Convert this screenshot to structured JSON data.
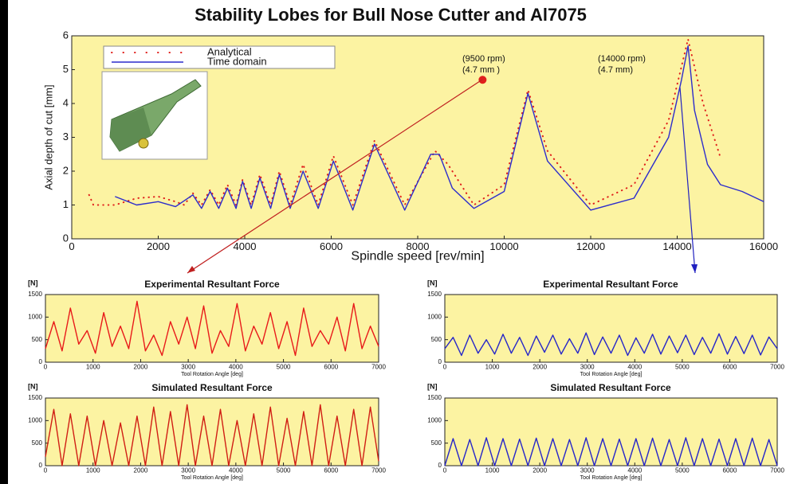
{
  "chart_data": [
    {
      "type": "line",
      "title": "Stability Lobes for Bull Nose Cutter and Al7075",
      "xlabel": "Spindle speed [rev/min]",
      "ylabel": "Axial depth of cut [mm]",
      "background": "#fcf3a2",
      "xlim": [
        0,
        16000
      ],
      "xticks": [
        0,
        2000,
        4000,
        6000,
        8000,
        10000,
        12000,
        14000,
        16000
      ],
      "ylim": [
        0,
        6
      ],
      "yticks": [
        0,
        1,
        2,
        3,
        4,
        5,
        6
      ],
      "annotations": [
        "(9500 rpm)",
        "(4.7 mm )",
        "(14000 rpm)",
        "(4.7 mm)"
      ],
      "highlight": {
        "x": 9500,
        "y": 4.7,
        "color": "#e0201c"
      },
      "series": [
        {
          "name": "Analytical",
          "color": "#e0201c",
          "style": "dotted",
          "x": [
            400,
            500,
            1000,
            1500,
            2000,
            2400,
            2600,
            2800,
            3000,
            3200,
            3400,
            3600,
            3800,
            3950,
            4150,
            4350,
            4600,
            4800,
            5050,
            5350,
            5700,
            6050,
            6500,
            7000,
            7700,
            8400,
            8700,
            9300,
            10000,
            10550,
            11000,
            12000,
            13000,
            13800,
            14250,
            14600,
            15000
          ],
          "values": [
            1.3,
            1.0,
            1.0,
            1.2,
            1.25,
            1.1,
            1.0,
            1.35,
            1.0,
            1.45,
            1.0,
            1.6,
            1.0,
            1.75,
            1.0,
            1.9,
            1.0,
            2.0,
            1.0,
            2.2,
            1.0,
            2.45,
            1.0,
            2.9,
            1.0,
            2.6,
            2.2,
            1.0,
            1.6,
            4.4,
            2.6,
            1.0,
            1.6,
            3.5,
            5.9,
            4.0,
            2.4
          ]
        },
        {
          "name": "Time domain",
          "color": "#2c2ccc",
          "style": "solid",
          "x": [
            1000,
            1500,
            2000,
            2400,
            2800,
            3000,
            3200,
            3400,
            3600,
            3800,
            3950,
            4150,
            4350,
            4600,
            4800,
            5050,
            5350,
            5700,
            6050,
            6500,
            7000,
            7700,
            8300,
            8500,
            8800,
            9300,
            10000,
            10550,
            11000,
            12000,
            13000,
            13800,
            14100,
            14250,
            14400,
            14700,
            15000,
            15500,
            16000
          ],
          "values": [
            1.25,
            1.0,
            1.1,
            0.95,
            1.3,
            0.9,
            1.4,
            0.9,
            1.5,
            0.9,
            1.7,
            0.9,
            1.8,
            0.9,
            1.9,
            0.9,
            2.0,
            0.9,
            2.3,
            0.85,
            2.8,
            0.85,
            2.5,
            2.5,
            1.5,
            0.9,
            1.4,
            4.3,
            2.3,
            0.85,
            1.2,
            3.0,
            4.7,
            5.7,
            3.8,
            2.2,
            1.6,
            1.4,
            1.1
          ]
        }
      ]
    },
    {
      "type": "line",
      "title": "Experimental Resultant Force",
      "ylabel": "[N]",
      "xlabel": "Tool Rotation Angle [deg]",
      "background": "#fcf3a2",
      "xlim": [
        0,
        7000
      ],
      "xticks": [
        0,
        1000,
        2000,
        3000,
        4000,
        5000,
        6000,
        7000
      ],
      "ylim": [
        0,
        1500
      ],
      "yticks": [
        0,
        500,
        1000,
        1500
      ],
      "x": [
        0,
        175,
        350,
        525,
        700,
        875,
        1050,
        1225,
        1400,
        1575,
        1750,
        1925,
        2100,
        2275,
        2450,
        2625,
        2800,
        2975,
        3150,
        3325,
        3500,
        3675,
        3850,
        4025,
        4200,
        4375,
        4550,
        4725,
        4900,
        5075,
        5250,
        5425,
        5600,
        5775,
        5950,
        6125,
        6300,
        6475,
        6650,
        6825,
        7000
      ],
      "series": [
        {
          "color": "#e81a1a",
          "values": [
            300,
            900,
            250,
            1200,
            400,
            700,
            200,
            1100,
            350,
            800,
            300,
            1350,
            250,
            600,
            150,
            900,
            400,
            1000,
            300,
            1250,
            200,
            700,
            350,
            1300,
            250,
            800,
            400,
            1100,
            300,
            900,
            150,
            1200,
            350,
            700,
            400,
            1000,
            250,
            1300,
            300,
            800,
            350
          ]
        }
      ]
    },
    {
      "type": "line",
      "title": "Experimental Resultant Force",
      "ylabel": "[N]",
      "xlabel": "Tool Rotation Angle [deg]",
      "background": "#fcf3a2",
      "xlim": [
        0,
        7000
      ],
      "xticks": [
        0,
        1000,
        2000,
        3000,
        4000,
        5000,
        6000,
        7000
      ],
      "ylim": [
        0,
        1500
      ],
      "yticks": [
        0,
        500,
        1000,
        1500
      ],
      "x": [
        0,
        175,
        350,
        525,
        700,
        875,
        1050,
        1225,
        1400,
        1575,
        1750,
        1925,
        2100,
        2275,
        2450,
        2625,
        2800,
        2975,
        3150,
        3325,
        3500,
        3675,
        3850,
        4025,
        4200,
        4375,
        4550,
        4725,
        4900,
        5075,
        5250,
        5425,
        5600,
        5775,
        5950,
        6125,
        6300,
        6475,
        6650,
        6825,
        7000
      ],
      "series": [
        {
          "color": "#2626c8",
          "values": [
            300,
            550,
            150,
            600,
            200,
            500,
            180,
            620,
            200,
            550,
            150,
            580,
            220,
            600,
            180,
            520,
            200,
            650,
            170,
            560,
            200,
            600,
            150,
            540,
            200,
            620,
            180,
            580,
            210,
            600,
            170,
            550,
            200,
            630,
            180,
            570,
            190,
            600,
            160,
            560,
            300
          ]
        }
      ]
    },
    {
      "type": "line",
      "title": "Simulated Resultant Force",
      "ylabel": "[N]",
      "xlabel": "Tool Rotation Angle [deg]",
      "background": "#fcf3a2",
      "xlim": [
        0,
        7000
      ],
      "xticks": [
        0,
        1000,
        2000,
        3000,
        4000,
        5000,
        6000,
        7000
      ],
      "ylim": [
        0,
        1500
      ],
      "yticks": [
        0,
        500,
        1000,
        1500
      ],
      "x": [
        0,
        175,
        350,
        525,
        700,
        875,
        1050,
        1225,
        1400,
        1575,
        1750,
        1925,
        2100,
        2275,
        2450,
        2625,
        2800,
        2975,
        3150,
        3325,
        3500,
        3675,
        3850,
        4025,
        4200,
        4375,
        4550,
        4725,
        4900,
        5075,
        5250,
        5425,
        5600,
        5775,
        5950,
        6125,
        6300,
        6475,
        6650,
        6825,
        7000
      ],
      "series": [
        {
          "color": "#d01e14",
          "values": [
            200,
            1250,
            0,
            1150,
            0,
            1100,
            0,
            1000,
            0,
            950,
            0,
            1100,
            0,
            1300,
            0,
            1200,
            0,
            1350,
            0,
            1100,
            0,
            1250,
            0,
            1000,
            0,
            1150,
            0,
            1300,
            0,
            1050,
            0,
            1200,
            0,
            1350,
            0,
            1100,
            0,
            1250,
            0,
            1300,
            100
          ]
        }
      ]
    },
    {
      "type": "line",
      "title": "Simulated Resultant Force",
      "ylabel": "[N]",
      "xlabel": "Tool Rotation Angle [deg]",
      "background": "#fcf3a2",
      "xlim": [
        0,
        7000
      ],
      "xticks": [
        0,
        1000,
        2000,
        3000,
        4000,
        5000,
        6000,
        7000
      ],
      "ylim": [
        0,
        1500
      ],
      "yticks": [
        0,
        500,
        1000,
        1500
      ],
      "x": [
        0,
        175,
        350,
        525,
        700,
        875,
        1050,
        1225,
        1400,
        1575,
        1750,
        1925,
        2100,
        2275,
        2450,
        2625,
        2800,
        2975,
        3150,
        3325,
        3500,
        3675,
        3850,
        4025,
        4200,
        4375,
        4550,
        4725,
        4900,
        5075,
        5250,
        5425,
        5600,
        5775,
        5950,
        6125,
        6300,
        6475,
        6650,
        6825,
        7000
      ],
      "series": [
        {
          "color": "#2626c8",
          "values": [
            0,
            600,
            0,
            580,
            0,
            620,
            0,
            600,
            0,
            590,
            0,
            610,
            0,
            600,
            0,
            580,
            0,
            620,
            0,
            600,
            0,
            590,
            0,
            600,
            0,
            610,
            0,
            580,
            0,
            620,
            0,
            600,
            0,
            590,
            0,
            600,
            0,
            610,
            0,
            580,
            0
          ]
        }
      ]
    }
  ]
}
